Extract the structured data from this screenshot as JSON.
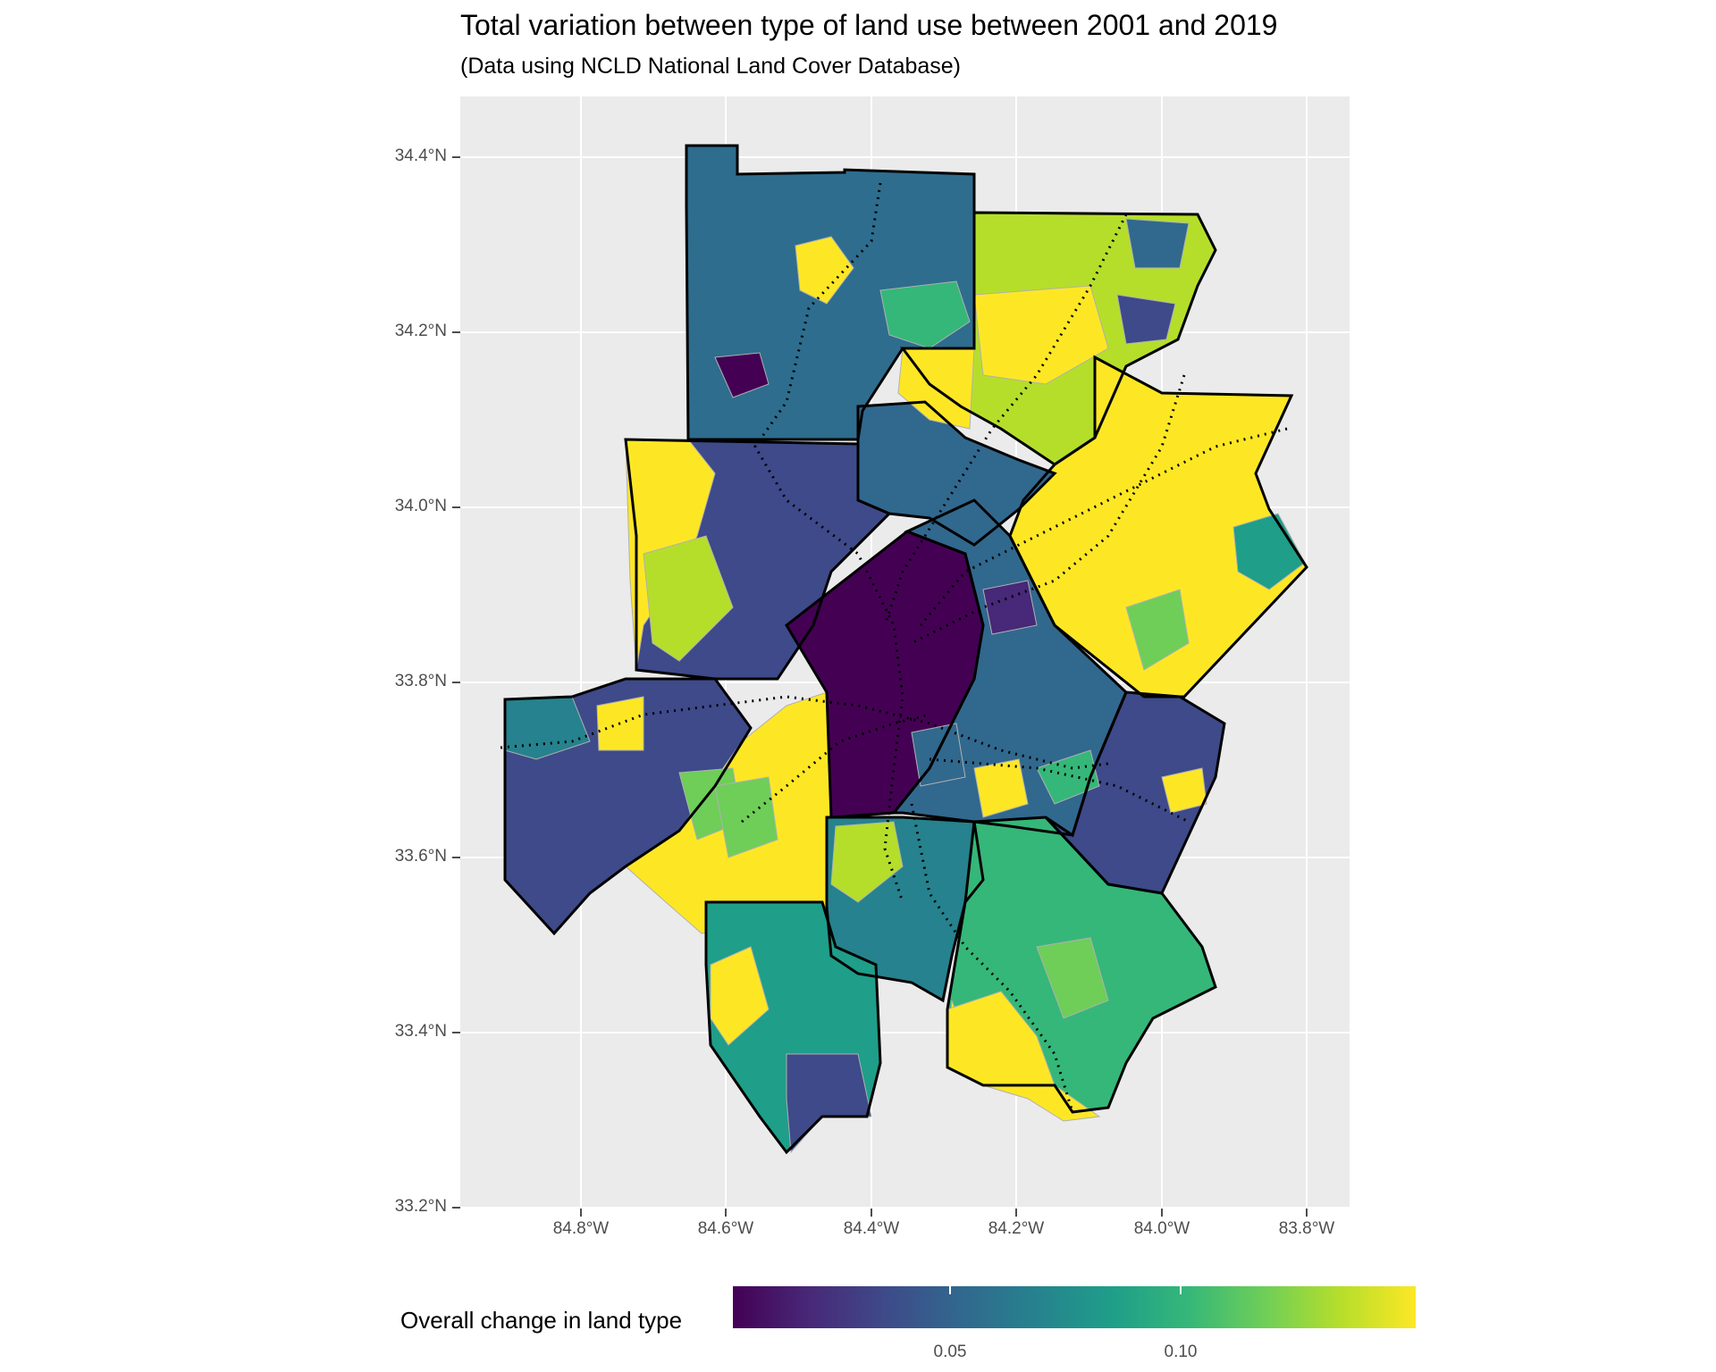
{
  "title": "Total variation between type of land use between 2001 and 2019",
  "subtitle": "(Data using NCLD National Land Cover Database)",
  "axes": {
    "y_ticks": [
      "34.4°N",
      "34.2°N",
      "34.0°N",
      "33.8°N",
      "33.6°N",
      "33.4°N",
      "33.2°N"
    ],
    "x_ticks": [
      "84.8°W",
      "84.6°W",
      "84.4°W",
      "84.2°W",
      "84.0°W",
      "83.8°W"
    ]
  },
  "legend": {
    "title": "Overall change in land type",
    "ticks": [
      "0.05",
      "0.10"
    ],
    "colors": [
      "#440154",
      "#482878",
      "#3e4a89",
      "#31688e",
      "#26828e",
      "#1f9e89",
      "#35b779",
      "#6ece58",
      "#b5de2b",
      "#fde725"
    ]
  },
  "map": {
    "panel_background": "#ebebeb",
    "grid_color": "#ffffff",
    "county_border_color": "#000000",
    "tract_border_color": "#b0b0b0"
  }
}
